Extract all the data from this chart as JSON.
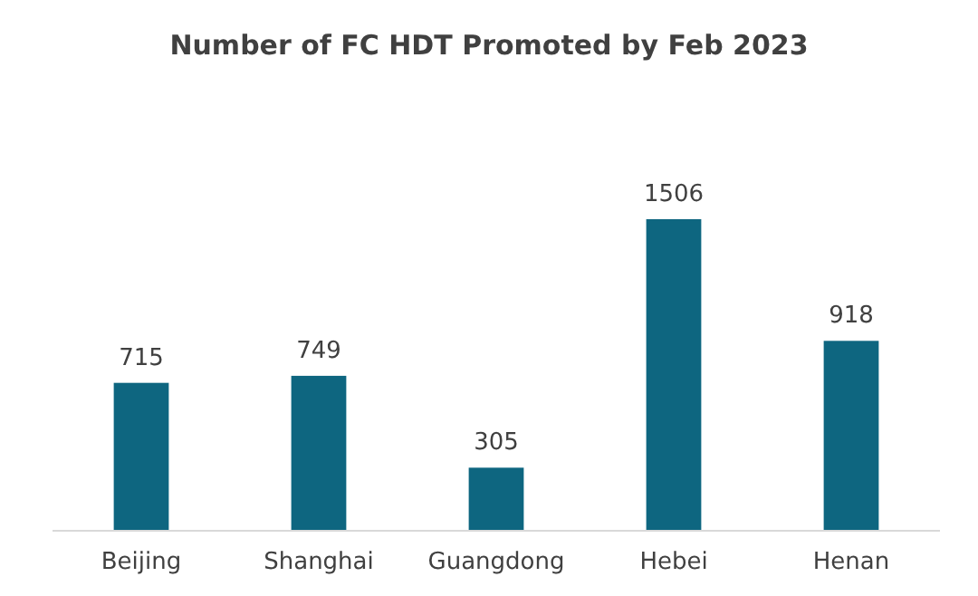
{
  "chart_data": {
    "type": "bar",
    "title": "Number of FC HDT Promoted by Feb 2023",
    "categories": [
      "Beijing",
      "Shanghai",
      "Guangdong",
      "Hebei",
      "Henan"
    ],
    "values": [
      715,
      749,
      305,
      1506,
      918
    ],
    "color": "#0e6680",
    "data_labels": true
  }
}
